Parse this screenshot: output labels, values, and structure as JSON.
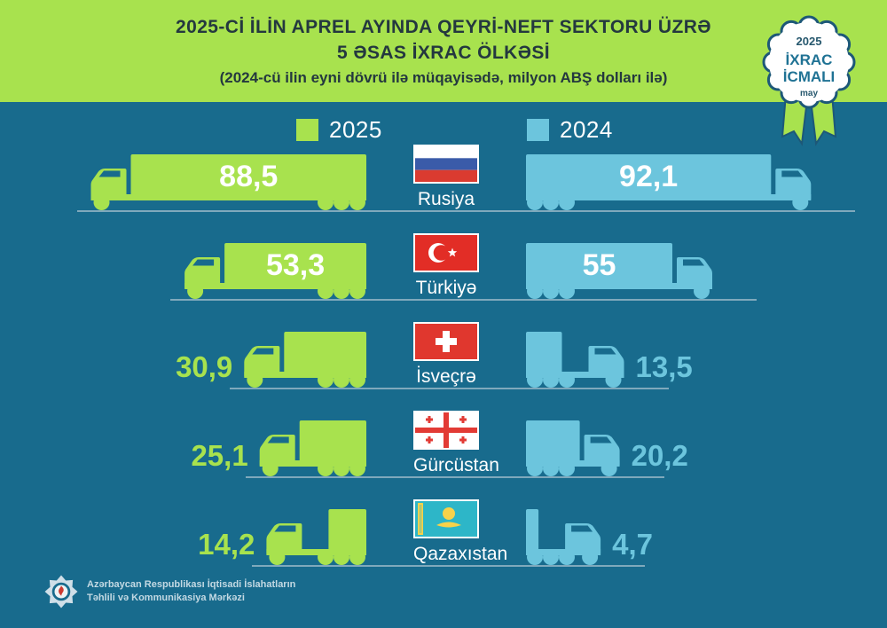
{
  "header": {
    "title_line1": "2025-Cİ İLİN APREL AYINDA QEYRİ-NEFT SEKTORU ÜZRƏ",
    "title_line2": "5 ƏSAS İXRAC ÖLKƏSİ",
    "subtitle": "(2024-cü ilin eyni dövrü ilə müqayisədə, milyon ABŞ dolları ilə)"
  },
  "badge": {
    "year": "2025",
    "title_line1": "İXRAC",
    "title_line2": "İCMALI",
    "month": "may"
  },
  "legend": [
    {
      "label": "2025",
      "color": "#a8e24e"
    },
    {
      "label": "2024",
      "color": "#6cc5dd"
    }
  ],
  "chart_data": {
    "type": "bar",
    "orientation": "horizontal-mirrored-trucks",
    "title": "2025-ci ilin aprel ayında qeyri-neft sektoru üzrə 5 əsas ixrac ölkəsi",
    "subtitle": "2024-cü ilin eyni dövrü ilə müqayisədə",
    "unit": "milyon ABŞ dolları",
    "categories": [
      "Rusiya",
      "Türkiyə",
      "İsveçrə",
      "Gürcüstan",
      "Qazaxıstan"
    ],
    "flag_icons": [
      "russia-flag",
      "turkey-flag",
      "switzerland-flag",
      "georgia-flag",
      "kazakhstan-flag"
    ],
    "series": [
      {
        "name": "2025",
        "color": "#a8e24e",
        "values": [
          88.5,
          53.3,
          30.9,
          25.1,
          14.2
        ]
      },
      {
        "name": "2024",
        "color": "#6cc5dd",
        "values": [
          92.1,
          55,
          13.5,
          20.2,
          4.7
        ]
      }
    ],
    "value_labels_2025": [
      "88,5",
      "53,3",
      "30,9",
      "25,1",
      "14,2"
    ],
    "value_labels_2024": [
      "92,1",
      "55",
      "13,5",
      "20,2",
      "4,7"
    ],
    "legend_position": "top"
  },
  "colors": {
    "background": "#186b8d",
    "header_band": "#a8e24e",
    "truck_2025": "#a8e24e",
    "truck_2024": "#6cc5dd",
    "road_line": "#7fa9bc",
    "title_text": "#24383f",
    "badge_navy": "#1d5878"
  },
  "footer": {
    "org_line1": "Azərbaycan Respublikası İqtisadi İslahatların",
    "org_line2": "Təhlili və Kommunikasiya Mərkəzi"
  }
}
